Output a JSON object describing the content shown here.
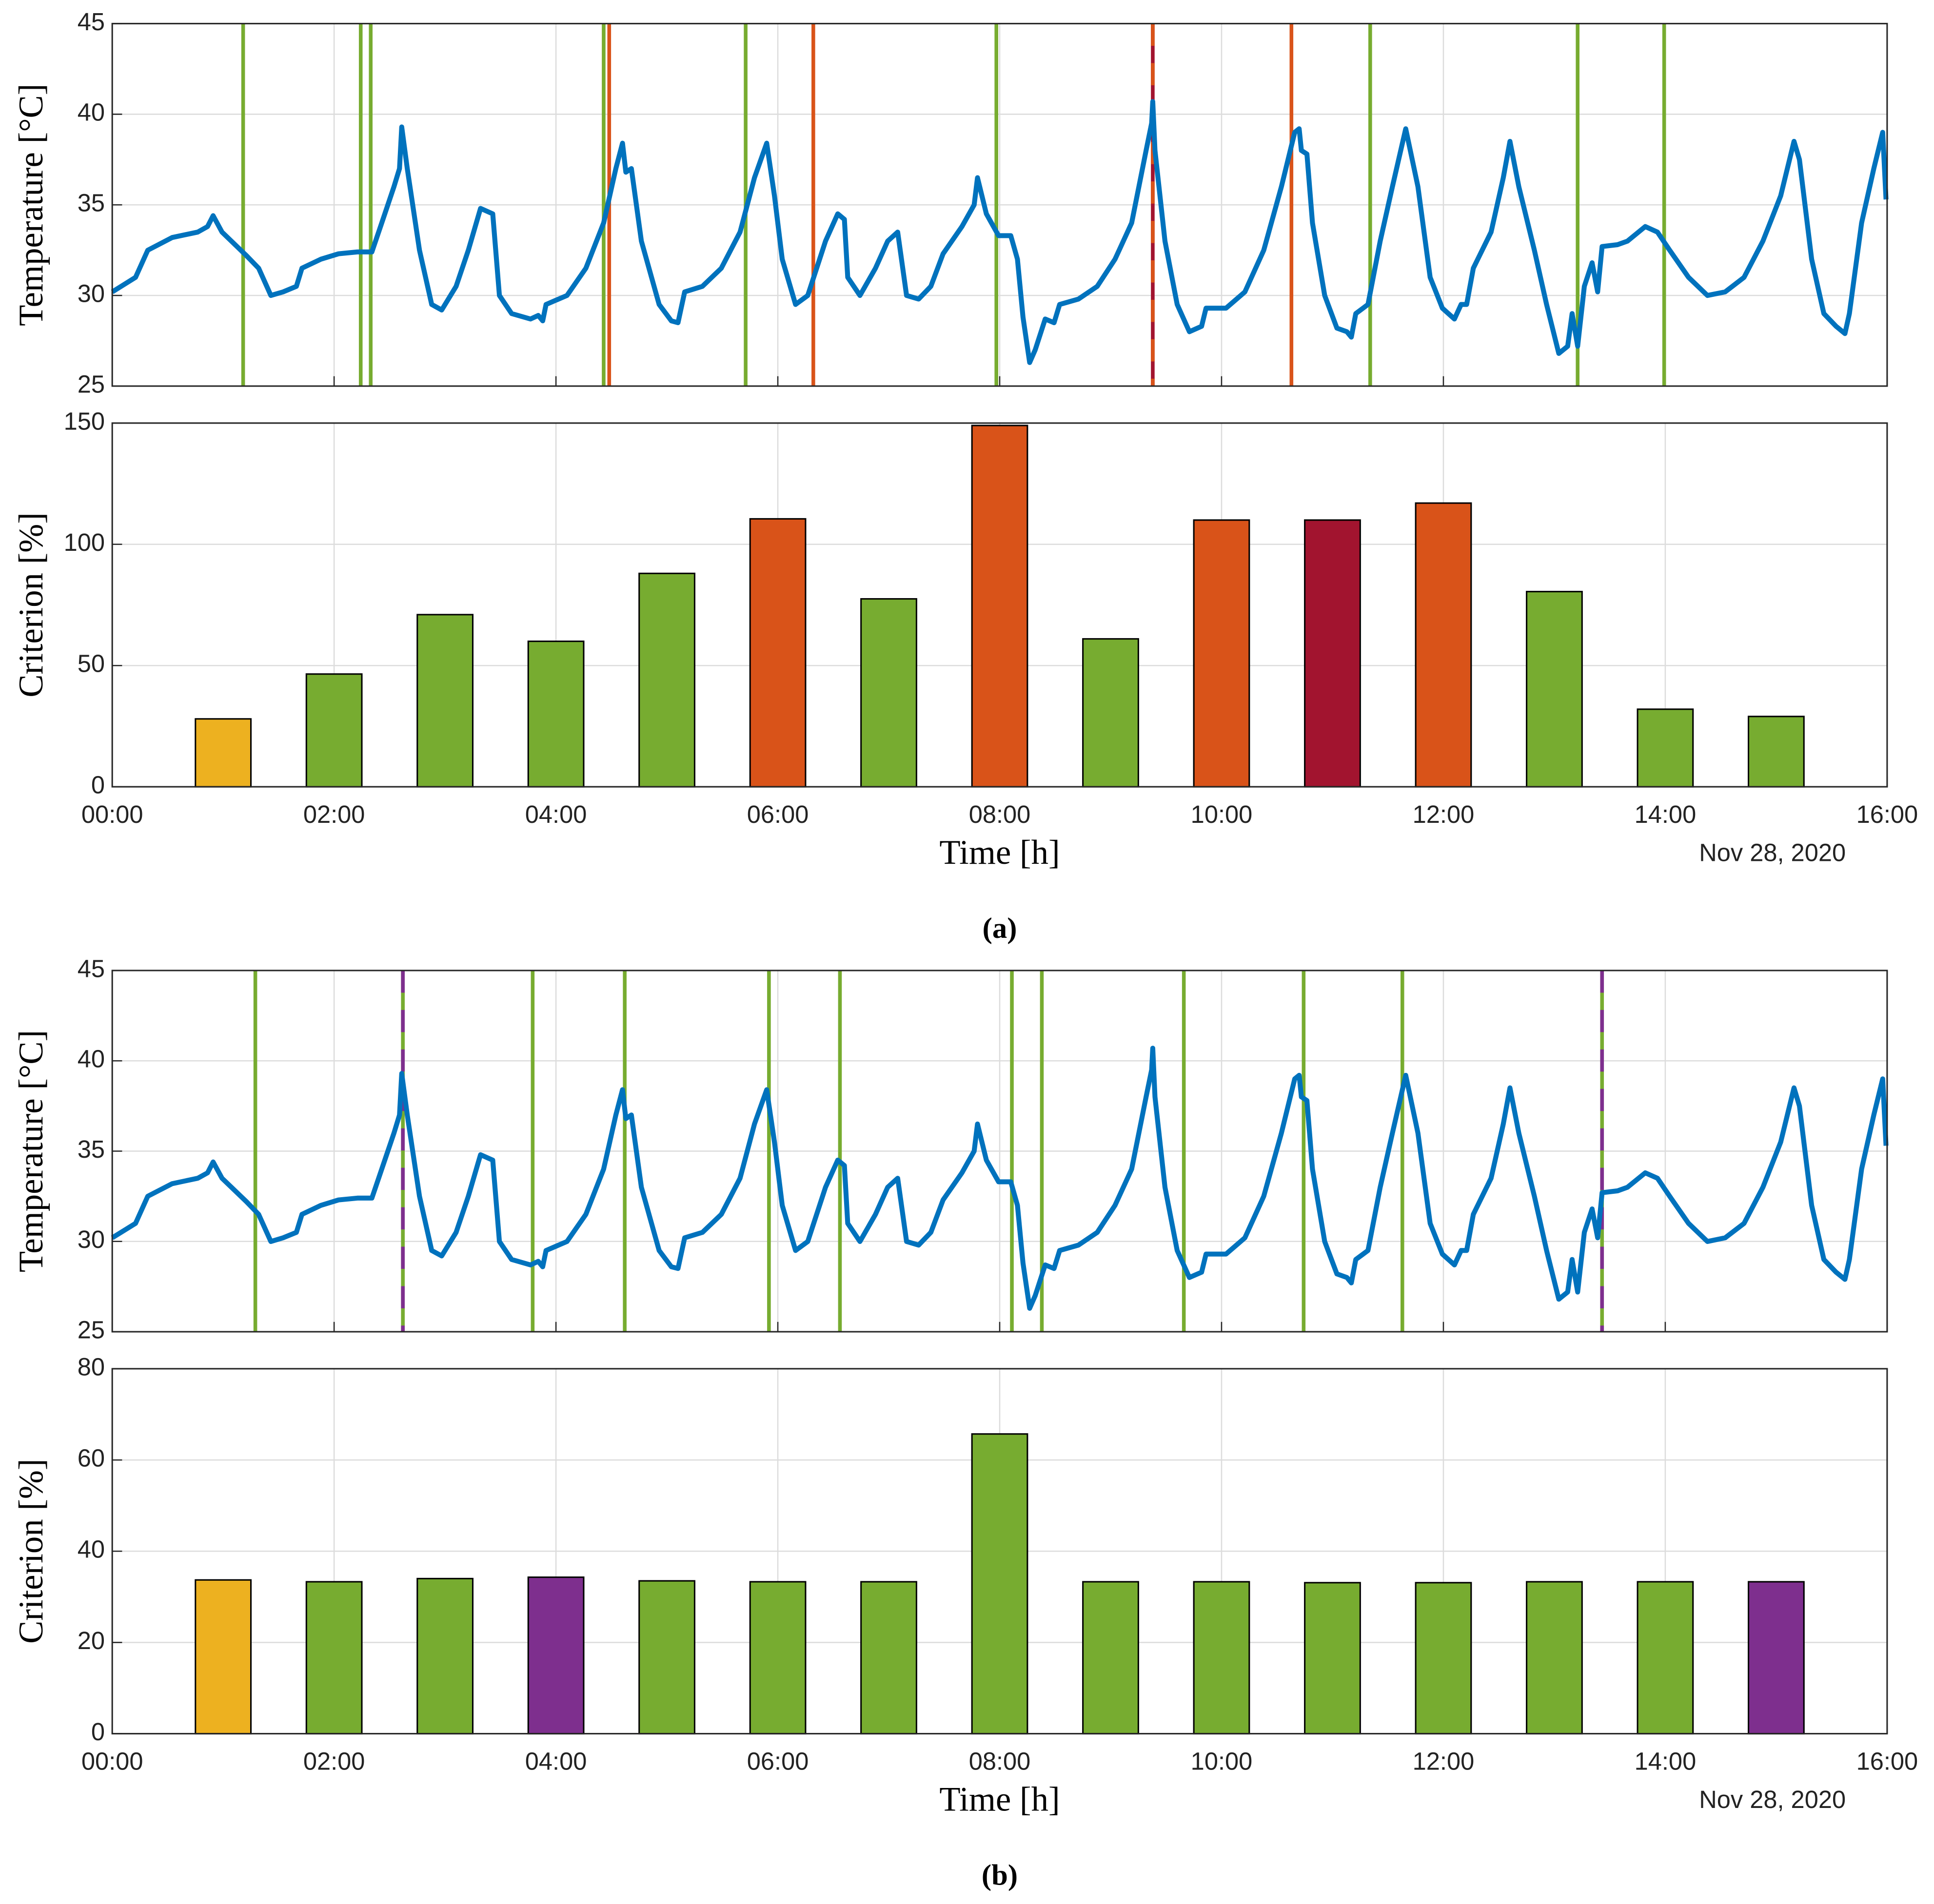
{
  "chart_data": [
    {
      "type": "line",
      "ylabel": "Temperature [°C]",
      "xlim": [
        0,
        16
      ],
      "ylim": [
        25,
        45
      ],
      "yticks": [
        25,
        30,
        35,
        40,
        45
      ],
      "xticks": [
        0,
        2,
        4,
        6,
        8,
        10,
        12,
        14,
        16
      ],
      "show_xtick_labels": false,
      "grid": true,
      "x": [
        0,
        0.21,
        0.32,
        0.54,
        0.77,
        0.86,
        0.91,
        0.99,
        1.21,
        1.32,
        1.43,
        1.54,
        1.66,
        1.71,
        1.88,
        2.04,
        2.21,
        2.34,
        2.43,
        2.54,
        2.59,
        2.61,
        2.66,
        2.77,
        2.88,
        2.97,
        3.1,
        3.21,
        3.32,
        3.43,
        3.49,
        3.6,
        3.77,
        3.84,
        3.88,
        3.91,
        4.1,
        4.27,
        4.43,
        4.54,
        4.6,
        4.63,
        4.68,
        4.77,
        4.93,
        5.04,
        5.1,
        5.16,
        5.32,
        5.49,
        5.66,
        5.79,
        5.9,
        5.97,
        6.04,
        6.16,
        6.27,
        6.43,
        6.54,
        6.6,
        6.63,
        6.74,
        6.88,
        6.99,
        7.08,
        7.16,
        7.27,
        7.38,
        7.49,
        7.66,
        7.77,
        7.8,
        7.88,
        7.99,
        8.1,
        8.16,
        8.21,
        8.27,
        8.32,
        8.41,
        8.49,
        8.54,
        8.71,
        8.88,
        9.04,
        9.19,
        9.32,
        9.37,
        9.38,
        9.4,
        9.49,
        9.6,
        9.71,
        9.82,
        9.86,
        10.04,
        10.21,
        10.38,
        10.54,
        10.66,
        10.7,
        10.72,
        10.77,
        10.82,
        10.93,
        11.04,
        11.13,
        11.17,
        11.21,
        11.32,
        11.43,
        11.54,
        11.66,
        11.77,
        11.88,
        11.99,
        12.1,
        12.16,
        12.21,
        12.27,
        12.43,
        12.54,
        12.6,
        12.68,
        12.82,
        12.93,
        13.04,
        13.12,
        13.16,
        13.21,
        13.27,
        13.34,
        13.39,
        13.43,
        13.57,
        13.66,
        13.82,
        13.93,
        14.04,
        14.21,
        14.38,
        14.54,
        14.71,
        14.88,
        15.04,
        15.16,
        15.21,
        15.32,
        15.43,
        15.54,
        15.62,
        15.66,
        15.77,
        15.88,
        15.96,
        15.99
      ],
      "series": [
        {
          "color": "#0072bd",
          "values": [
            30.2,
            31,
            32.5,
            33.2,
            33.5,
            33.8,
            34.4,
            33.5,
            32.2,
            31.5,
            30,
            30.2,
            30.5,
            31.5,
            32,
            32.3,
            32.4,
            32.4,
            34,
            36,
            37,
            39.3,
            37,
            32.5,
            29.5,
            29.2,
            30.5,
            32.5,
            34.8,
            34.5,
            30,
            29,
            28.7,
            28.9,
            28.6,
            29.5,
            30,
            31.5,
            34,
            37,
            38.4,
            36.8,
            37,
            33,
            29.5,
            28.6,
            28.5,
            30.2,
            30.5,
            31.5,
            33.5,
            36.5,
            38.4,
            35.5,
            32,
            29.5,
            30,
            33,
            34.5,
            34.2,
            31,
            30,
            31.5,
            33,
            33.5,
            30,
            29.8,
            30.5,
            32.3,
            33.8,
            35,
            36.5,
            34.5,
            33.3,
            33.3,
            32,
            28.8,
            26.3,
            27,
            28.7,
            28.5,
            29.5,
            29.8,
            30.5,
            32,
            34,
            38,
            39.5,
            40.7,
            38,
            33,
            29.5,
            28,
            28.3,
            29.3,
            29.3,
            30.2,
            32.5,
            36,
            39,
            39.2,
            38,
            37.8,
            34,
            30,
            28.2,
            28,
            27.7,
            29,
            29.5,
            33,
            36,
            39.2,
            36,
            31,
            29.3,
            28.7,
            29.5,
            29.5,
            31.5,
            33.5,
            36.5,
            38.5,
            36,
            32.5,
            29.5,
            26.8,
            27.2,
            29,
            27.2,
            30.5,
            31.8,
            30.2,
            32.7,
            32.8,
            33,
            33.8,
            33.5,
            32.5,
            31,
            30,
            30.2,
            31,
            33,
            35.5,
            38.5,
            37.5,
            32,
            29,
            28.3,
            27.9,
            29,
            34,
            37,
            39,
            35.3
          ]
        }
      ],
      "events": [
        {
          "x": 1.18,
          "color": "#77ac30"
        },
        {
          "x": 2.24,
          "color": "#77ac30"
        },
        {
          "x": 2.33,
          "color": "#77ac30"
        },
        {
          "x": 4.43,
          "color": "#77ac30"
        },
        {
          "x": 4.48,
          "color": "#d95319"
        },
        {
          "x": 5.71,
          "color": "#77ac30"
        },
        {
          "x": 6.32,
          "color": "#d95319"
        },
        {
          "x": 7.97,
          "color": "#77ac30"
        },
        {
          "x": 9.38,
          "color": "#a2142f",
          "dash_color": "#d95319"
        },
        {
          "x": 10.63,
          "color": "#d95319"
        },
        {
          "x": 11.34,
          "color": "#77ac30"
        },
        {
          "x": 13.21,
          "color": "#77ac30"
        },
        {
          "x": 13.99,
          "color": "#77ac30"
        }
      ]
    },
    {
      "type": "bar",
      "ylabel": "Criterion [%]",
      "xlabel": "Time [h]",
      "annotation": "Nov 28, 2020",
      "caption": "(a)",
      "xlim": [
        0,
        16
      ],
      "ylim": [
        0,
        150
      ],
      "yticks": [
        0,
        50,
        100,
        150
      ],
      "xticks": [
        {
          "value": 0,
          "label": "00:00"
        },
        {
          "value": 2,
          "label": "02:00"
        },
        {
          "value": 4,
          "label": "04:00"
        },
        {
          "value": 6,
          "label": "06:00"
        },
        {
          "value": 8,
          "label": "08:00"
        },
        {
          "value": 10,
          "label": "10:00"
        },
        {
          "value": 12,
          "label": "12:00"
        },
        {
          "value": 14,
          "label": "14:00"
        },
        {
          "value": 16,
          "label": "16:00"
        }
      ],
      "show_xtick_labels": true,
      "grid": true,
      "x": [
        1,
        2,
        3,
        4,
        5,
        6,
        7,
        8,
        9,
        10,
        11,
        12,
        13,
        14,
        15
      ],
      "values": [
        28,
        46.5,
        71,
        60,
        88,
        110.5,
        77.5,
        149,
        61,
        110,
        110,
        117,
        80.5,
        32,
        29
      ],
      "colors": [
        "#edb120",
        "#77ac30",
        "#77ac30",
        "#77ac30",
        "#77ac30",
        "#d95319",
        "#77ac30",
        "#d95319",
        "#77ac30",
        "#d95319",
        "#a2142f",
        "#d95319",
        "#77ac30",
        "#77ac30",
        "#77ac30"
      ]
    },
    {
      "type": "line",
      "ylabel": "Temperature [°C]",
      "xlim": [
        0,
        16
      ],
      "ylim": [
        25,
        45
      ],
      "yticks": [
        25,
        30,
        35,
        40,
        45
      ],
      "xticks": [
        0,
        2,
        4,
        6,
        8,
        10,
        12,
        14,
        16
      ],
      "show_xtick_labels": false,
      "grid": true,
      "x": [
        0,
        0.21,
        0.32,
        0.54,
        0.77,
        0.86,
        0.91,
        0.99,
        1.21,
        1.32,
        1.43,
        1.54,
        1.66,
        1.71,
        1.88,
        2.04,
        2.21,
        2.34,
        2.43,
        2.54,
        2.59,
        2.61,
        2.66,
        2.77,
        2.88,
        2.97,
        3.1,
        3.21,
        3.32,
        3.43,
        3.49,
        3.6,
        3.77,
        3.84,
        3.88,
        3.91,
        4.1,
        4.27,
        4.43,
        4.54,
        4.6,
        4.63,
        4.68,
        4.77,
        4.93,
        5.04,
        5.1,
        5.16,
        5.32,
        5.49,
        5.66,
        5.79,
        5.9,
        5.97,
        6.04,
        6.16,
        6.27,
        6.43,
        6.54,
        6.6,
        6.63,
        6.74,
        6.88,
        6.99,
        7.08,
        7.16,
        7.27,
        7.38,
        7.49,
        7.66,
        7.77,
        7.8,
        7.88,
        7.99,
        8.1,
        8.16,
        8.21,
        8.27,
        8.32,
        8.41,
        8.49,
        8.54,
        8.71,
        8.88,
        9.04,
        9.19,
        9.32,
        9.37,
        9.38,
        9.4,
        9.49,
        9.6,
        9.71,
        9.82,
        9.86,
        10.04,
        10.21,
        10.38,
        10.54,
        10.66,
        10.7,
        10.72,
        10.77,
        10.82,
        10.93,
        11.04,
        11.13,
        11.17,
        11.21,
        11.32,
        11.43,
        11.54,
        11.66,
        11.77,
        11.88,
        11.99,
        12.1,
        12.16,
        12.21,
        12.27,
        12.43,
        12.54,
        12.6,
        12.68,
        12.82,
        12.93,
        13.04,
        13.12,
        13.16,
        13.21,
        13.27,
        13.34,
        13.39,
        13.43,
        13.57,
        13.66,
        13.82,
        13.93,
        14.04,
        14.21,
        14.38,
        14.54,
        14.71,
        14.88,
        15.04,
        15.16,
        15.21,
        15.32,
        15.43,
        15.54,
        15.62,
        15.66,
        15.77,
        15.88,
        15.96,
        15.99
      ],
      "series": [
        {
          "color": "#0072bd",
          "values": [
            30.2,
            31,
            32.5,
            33.2,
            33.5,
            33.8,
            34.4,
            33.5,
            32.2,
            31.5,
            30,
            30.2,
            30.5,
            31.5,
            32,
            32.3,
            32.4,
            32.4,
            34,
            36,
            37,
            39.3,
            37,
            32.5,
            29.5,
            29.2,
            30.5,
            32.5,
            34.8,
            34.5,
            30,
            29,
            28.7,
            28.9,
            28.6,
            29.5,
            30,
            31.5,
            34,
            37,
            38.4,
            36.8,
            37,
            33,
            29.5,
            28.6,
            28.5,
            30.2,
            30.5,
            31.5,
            33.5,
            36.5,
            38.4,
            35.5,
            32,
            29.5,
            30,
            33,
            34.5,
            34.2,
            31,
            30,
            31.5,
            33,
            33.5,
            30,
            29.8,
            30.5,
            32.3,
            33.8,
            35,
            36.5,
            34.5,
            33.3,
            33.3,
            32,
            28.8,
            26.3,
            27,
            28.7,
            28.5,
            29.5,
            29.8,
            30.5,
            32,
            34,
            38,
            39.5,
            40.7,
            38,
            33,
            29.5,
            28,
            28.3,
            29.3,
            29.3,
            30.2,
            32.5,
            36,
            39,
            39.2,
            38,
            37.8,
            34,
            30,
            28.2,
            28,
            27.7,
            29,
            29.5,
            33,
            36,
            39.2,
            36,
            31,
            29.3,
            28.7,
            29.5,
            29.5,
            31.5,
            33.5,
            36.5,
            38.5,
            36,
            32.5,
            29.5,
            26.8,
            27.2,
            29,
            27.2,
            30.5,
            31.8,
            30.2,
            32.7,
            32.8,
            33,
            33.8,
            33.5,
            32.5,
            31,
            30,
            30.2,
            31,
            33,
            35.5,
            38.5,
            37.5,
            32,
            29,
            28.3,
            27.9,
            29,
            34,
            37,
            39,
            35.3
          ]
        }
      ],
      "events": [
        {
          "x": 1.29,
          "color": "#77ac30"
        },
        {
          "x": 2.62,
          "color": "#77ac30",
          "dash_color": "#7e2f8e"
        },
        {
          "x": 3.79,
          "color": "#77ac30"
        },
        {
          "x": 4.62,
          "color": "#77ac30"
        },
        {
          "x": 5.92,
          "color": "#77ac30"
        },
        {
          "x": 6.56,
          "color": "#77ac30"
        },
        {
          "x": 8.11,
          "color": "#77ac30"
        },
        {
          "x": 8.38,
          "color": "#77ac30"
        },
        {
          "x": 9.66,
          "color": "#77ac30"
        },
        {
          "x": 10.74,
          "color": "#77ac30"
        },
        {
          "x": 11.63,
          "color": "#77ac30"
        },
        {
          "x": 13.43,
          "color": "#77ac30",
          "dash_color": "#7e2f8e"
        }
      ]
    },
    {
      "type": "bar",
      "ylabel": "Criterion [%]",
      "xlabel": "Time [h]",
      "annotation": "Nov 28, 2020",
      "caption": "(b)",
      "xlim": [
        0,
        16
      ],
      "ylim": [
        0,
        80
      ],
      "yticks": [
        0,
        20,
        40,
        60,
        80
      ],
      "xticks": [
        {
          "value": 0,
          "label": "00:00"
        },
        {
          "value": 2,
          "label": "02:00"
        },
        {
          "value": 4,
          "label": "04:00"
        },
        {
          "value": 6,
          "label": "06:00"
        },
        {
          "value": 8,
          "label": "08:00"
        },
        {
          "value": 10,
          "label": "10:00"
        },
        {
          "value": 12,
          "label": "12:00"
        },
        {
          "value": 14,
          "label": "14:00"
        },
        {
          "value": 16,
          "label": "16:00"
        }
      ],
      "show_xtick_labels": true,
      "grid": true,
      "x": [
        1,
        2,
        3,
        4,
        5,
        6,
        7,
        8,
        9,
        10,
        11,
        12,
        13,
        14,
        15
      ],
      "values": [
        33.7,
        33.3,
        34,
        34.3,
        33.5,
        33.3,
        33.3,
        65.7,
        33.3,
        33.3,
        33.1,
        33.1,
        33.3,
        33.3,
        33.3
      ],
      "colors": [
        "#edb120",
        "#77ac30",
        "#77ac30",
        "#7e2f8e",
        "#77ac30",
        "#77ac30",
        "#77ac30",
        "#77ac30",
        "#77ac30",
        "#77ac30",
        "#77ac30",
        "#77ac30",
        "#77ac30",
        "#77ac30",
        "#7e2f8e"
      ]
    }
  ]
}
